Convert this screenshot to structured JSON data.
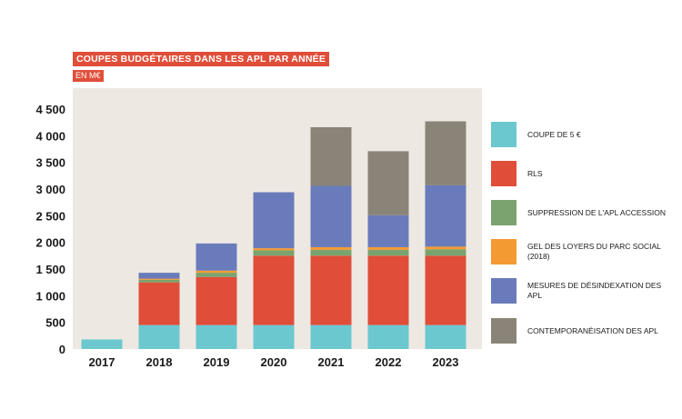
{
  "header": {
    "title": "COUPES BUDGÉTAIRES DANS LES APL PAR ANNÉE",
    "subtitle": "EN M€"
  },
  "colors": {
    "plot_background": "#ede9e2",
    "title_background": "#e04e39"
  },
  "chart_data": {
    "type": "bar",
    "stacked": true,
    "title": "COUPES BUDGÉTAIRES DANS LES APL PAR ANNÉE",
    "subtitle": "EN M€",
    "xlabel": "",
    "ylabel": "",
    "categories": [
      "2017",
      "2018",
      "2019",
      "2020",
      "2021",
      "2022",
      "2023"
    ],
    "y_ticks": [
      0,
      500,
      1000,
      1500,
      2000,
      2500,
      3000,
      3500,
      4000,
      4500
    ],
    "y_tick_labels": [
      "0",
      "500",
      "1 000",
      "1 500",
      "2 000",
      "2 500",
      "3 000",
      "3 500",
      "4 000",
      "4 500"
    ],
    "ylim": [
      0,
      4700
    ],
    "grid": false,
    "legend_position": "right",
    "series": [
      {
        "name": "COUPE DE 5 €",
        "color": "#6cc8cf",
        "values": [
          180,
          450,
          450,
          450,
          450,
          450,
          450
        ]
      },
      {
        "name": "RLS",
        "color": "#e04e39",
        "values": [
          0,
          800,
          900,
          1300,
          1300,
          1300,
          1300
        ]
      },
      {
        "name": "SUPPRESSION DE L'APL ACCESSION",
        "color": "#7aa36f",
        "values": [
          0,
          50,
          80,
          100,
          110,
          110,
          120
        ]
      },
      {
        "name": "GEL DES LOYERS DU PARC SOCIAL (2018)",
        "color": "#f49a32",
        "values": [
          0,
          20,
          40,
          40,
          50,
          50,
          50
        ]
      },
      {
        "name": "MESURES DE DÉSINDEXATION DES APL",
        "color": "#6a7bbb",
        "values": [
          0,
          110,
          510,
          1050,
          1150,
          600,
          1150
        ]
      },
      {
        "name": "CONTEMPORANÉISATION DES APL",
        "color": "#8a8478",
        "values": [
          0,
          0,
          0,
          0,
          1100,
          1200,
          1200
        ]
      }
    ]
  }
}
